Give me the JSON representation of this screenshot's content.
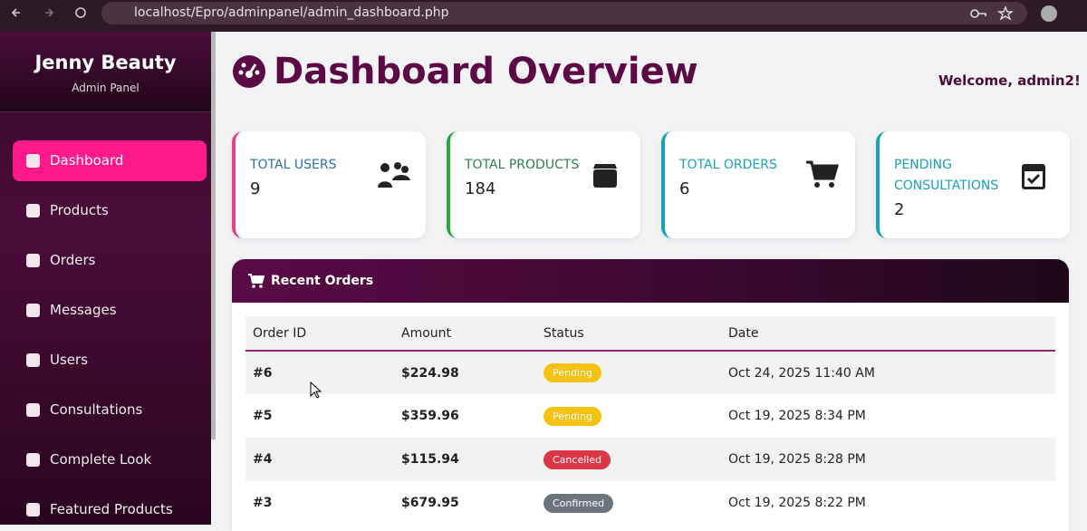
{
  "browser": {
    "url": "localhost/Epro/adminpanel/admin_dashboard.php"
  },
  "sidebar": {
    "brand": "Jenny Beauty",
    "subtitle": "Admin Panel",
    "nav": [
      "Dashboard",
      "Products",
      "Orders",
      "Messages",
      "Users",
      "Consultations",
      "Complete Look",
      "Featured Products"
    ]
  },
  "header": {
    "title": "Dashboard Overview",
    "welcome": "Welcome, admin2!"
  },
  "stats": [
    {
      "label": "TOTAL USERS",
      "value": 9
    },
    {
      "label": "TOTAL PRODUCTS",
      "value": 184
    },
    {
      "label": "TOTAL ORDERS",
      "value": 6
    },
    {
      "label": "PENDING CONSULTATIONS",
      "value": 2
    }
  ],
  "recent_orders": {
    "title": "Recent Orders",
    "columns": [
      "Order ID",
      "Amount",
      "Status",
      "Date"
    ],
    "rows": [
      [
        "#6",
        "$224.98",
        "Pending",
        "Oct 24, 2025 11:40 AM"
      ],
      [
        "#5",
        "$359.96",
        "Pending",
        "Oct 19, 2025 8:34 PM"
      ],
      [
        "#4",
        "$115.94",
        "Cancelled",
        "Oct 19, 2025 8:28 PM"
      ],
      [
        "#3",
        "$679.95",
        "Confirmed",
        "Oct 19, 2025 8:22 PM"
      ]
    ]
  }
}
